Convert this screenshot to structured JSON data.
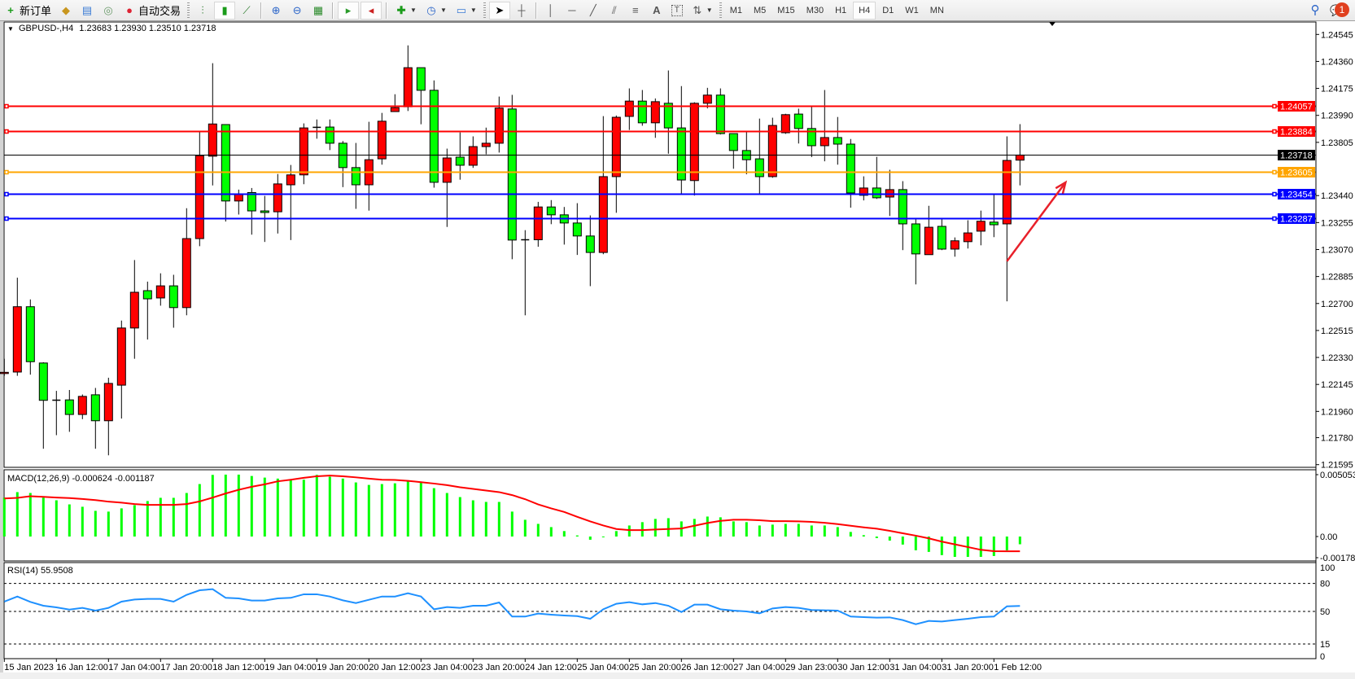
{
  "toolbar": {
    "new_order": "新订单",
    "auto_trade": "自动交易",
    "timeframes": [
      "M1",
      "M5",
      "M15",
      "M30",
      "H1",
      "H4",
      "D1",
      "W1",
      "MN"
    ],
    "active_timeframe": "H4",
    "notification_count": "1"
  },
  "chart": {
    "symbol_label": "GBPUSD-,H4",
    "ohlc_label": "1.23683 1.23930 1.23510 1.23718",
    "macd_label": "MACD(12,26,9) -0.000624 -0.001187",
    "rsi_label": "RSI(14) 55.9508",
    "colors": {
      "bull": "#ff0000",
      "bear": "#00ff00",
      "macd_hist": "#00ff00",
      "macd_signal": "#ff0000",
      "rsi": "#1e90ff",
      "arrow": "#e8202a"
    }
  },
  "chart_data": [
    {
      "type": "candlestick",
      "ylim": [
        1.21577,
        1.24619
      ],
      "y_ticks": [
        "1.24545",
        "1.24360",
        "1.24175",
        "1.23990",
        "1.23805",
        "1.23440",
        "1.23255",
        "1.23070",
        "1.22885",
        "1.22700",
        "1.22515",
        "1.22330",
        "1.22145",
        "1.21960",
        "1.21780",
        "1.21595"
      ],
      "x_tick_labels": [
        "15 Jan 2023",
        "16 Jan 12:00",
        "17 Jan 04:00",
        "17 Jan 20:00",
        "18 Jan 12:00",
        "19 Jan 04:00",
        "19 Jan 20:00",
        "20 Jan 12:00",
        "23 Jan 04:00",
        "23 Jan 20:00",
        "24 Jan 12:00",
        "25 Jan 04:00",
        "25 Jan 20:00",
        "26 Jan 12:00",
        "27 Jan 04:00",
        "29 Jan 23:00",
        "30 Jan 12:00",
        "31 Jan 04:00",
        "31 Jan 20:00",
        "1 Feb 12:00"
      ],
      "ohlc": [
        [
          1.2222,
          1.22321,
          1.22204,
          1.22228
        ],
        [
          1.2223,
          1.22877,
          1.22204,
          1.22678
        ],
        [
          1.22678,
          1.22728,
          1.22212,
          1.22301
        ],
        [
          1.22292,
          1.22297,
          1.21704,
          1.22036
        ],
        [
          1.22037,
          1.22101,
          1.21797,
          1.22037
        ],
        [
          1.22039,
          1.22107,
          1.2182,
          1.21939
        ],
        [
          1.21939,
          1.22076,
          1.21907,
          1.22063
        ],
        [
          1.22074,
          1.22121,
          1.21704,
          1.21896
        ],
        [
          1.21896,
          1.22191,
          1.21659,
          1.22152
        ],
        [
          1.2214,
          1.22583,
          1.21911,
          1.22532
        ],
        [
          1.22532,
          1.22998,
          1.22321,
          1.22777
        ],
        [
          1.22788,
          1.2285,
          1.22453,
          1.22732
        ],
        [
          1.22738,
          1.22907,
          1.22685,
          1.22821
        ],
        [
          1.22821,
          1.22897,
          1.22534,
          1.22672
        ],
        [
          1.22672,
          1.23353,
          1.22619,
          1.23145
        ],
        [
          1.23145,
          1.2388,
          1.23093,
          1.23714
        ],
        [
          1.2371,
          1.24348,
          1.2351,
          1.23931
        ],
        [
          1.23927,
          1.23927,
          1.23262,
          1.23403
        ],
        [
          1.23403,
          1.23481,
          1.2331,
          1.23452
        ],
        [
          1.23461,
          1.23492,
          1.23172,
          1.23335
        ],
        [
          1.23335,
          1.23438,
          1.23122,
          1.23324
        ],
        [
          1.23329,
          1.23588,
          1.2318,
          1.2352
        ],
        [
          1.23514,
          1.2365,
          1.23135,
          1.23582
        ],
        [
          1.23582,
          1.23935,
          1.23518,
          1.23904
        ],
        [
          1.23908,
          1.23962,
          1.2383,
          1.23908
        ],
        [
          1.2391,
          1.23962,
          1.23752,
          1.23799
        ],
        [
          1.23799,
          1.23814,
          1.23498,
          1.23632
        ],
        [
          1.23632,
          1.23801,
          1.23349,
          1.23514
        ],
        [
          1.23514,
          1.23946,
          1.23337,
          1.23686
        ],
        [
          1.23692,
          1.24007,
          1.23652,
          1.2395
        ],
        [
          1.24016,
          1.24135,
          1.24016,
          1.24043
        ],
        [
          1.24049,
          1.2447,
          1.2402,
          1.24317
        ],
        [
          1.24317,
          1.24317,
          1.23929,
          1.24162
        ],
        [
          1.24162,
          1.2423,
          1.23494,
          1.23531
        ],
        [
          1.23531,
          1.23762,
          1.23225,
          1.23698
        ],
        [
          1.23704,
          1.23873,
          1.23549,
          1.23648
        ],
        [
          1.23648,
          1.23846,
          1.2363,
          1.23776
        ],
        [
          1.23776,
          1.23906,
          1.23723,
          1.23799
        ],
        [
          1.23799,
          1.24119,
          1.23735,
          1.2404
        ],
        [
          1.24034,
          1.24131,
          1.23004,
          1.23135
        ],
        [
          1.23137,
          1.23203,
          1.22619,
          1.23137
        ],
        [
          1.23137,
          1.23397,
          1.23089,
          1.23362
        ],
        [
          1.23362,
          1.23409,
          1.23244,
          1.23308
        ],
        [
          1.23308,
          1.23362,
          1.23104,
          1.23252
        ],
        [
          1.23252,
          1.23388,
          1.23033,
          1.23163
        ],
        [
          1.23163,
          1.23304,
          1.22819,
          1.2305
        ],
        [
          1.2305,
          1.23985,
          1.23038,
          1.2357
        ],
        [
          1.2357,
          1.23989,
          1.23322,
          1.23977
        ],
        [
          1.23983,
          1.24175,
          1.2389,
          1.24088
        ],
        [
          1.24088,
          1.24164,
          1.23919,
          1.23939
        ],
        [
          1.23939,
          1.24106,
          1.23836,
          1.24084
        ],
        [
          1.24073,
          1.24298,
          1.23727,
          1.23904
        ],
        [
          1.23904,
          1.24191,
          1.23446,
          1.23547
        ],
        [
          1.23543,
          1.2408,
          1.2344,
          1.24073
        ],
        [
          1.24073,
          1.24179,
          1.24038,
          1.24129
        ],
        [
          1.24129,
          1.24175,
          1.23859,
          1.23865
        ],
        [
          1.23865,
          1.23865,
          1.23624,
          1.23749
        ],
        [
          1.23749,
          1.2388,
          1.23586,
          1.23686
        ],
        [
          1.23692,
          1.23968,
          1.23446,
          1.2357
        ],
        [
          1.2357,
          1.23974,
          1.23562,
          1.23921
        ],
        [
          1.23871,
          1.24001,
          1.23863,
          1.23995
        ],
        [
          1.23999,
          1.24036,
          1.23797,
          1.239
        ],
        [
          1.239,
          1.24053,
          1.23704,
          1.23782
        ],
        [
          1.23782,
          1.24164,
          1.23675,
          1.23838
        ],
        [
          1.23838,
          1.23979,
          1.23652,
          1.23793
        ],
        [
          1.23793,
          1.23828,
          1.23357,
          1.23458
        ],
        [
          1.23442,
          1.23572,
          1.23407,
          1.23492
        ],
        [
          1.23492,
          1.23706,
          1.23417,
          1.23425
        ],
        [
          1.2343,
          1.23617,
          1.233,
          1.23481
        ],
        [
          1.23481,
          1.23539,
          1.23066,
          1.23246
        ],
        [
          1.23246,
          1.23281,
          1.22831,
          1.2304
        ],
        [
          1.23035,
          1.2337,
          1.23035,
          1.23223
        ],
        [
          1.23229,
          1.23281,
          1.23066,
          1.23073
        ],
        [
          1.23073,
          1.23153,
          1.23021,
          1.2313
        ],
        [
          1.23124,
          1.23271,
          1.23077,
          1.23184
        ],
        [
          1.23196,
          1.23337,
          1.23099,
          1.23264
        ],
        [
          1.23258,
          1.23452,
          1.23155,
          1.2324
        ],
        [
          1.23246,
          1.23846,
          1.22715,
          1.23681
        ],
        [
          1.23683,
          1.2393,
          1.2351,
          1.23718
        ]
      ],
      "horizontal_lines": [
        {
          "price": "1.24057",
          "color": "#ff0000",
          "label_text": "#ffffff"
        },
        {
          "price": "1.23884",
          "color": "#ff0000",
          "label_text": "#ffffff"
        },
        {
          "price": "1.23718",
          "color": "#000000",
          "label_text": "#ffffff",
          "bid": true
        },
        {
          "price": "1.23605",
          "color": "#ffa500",
          "label_text": "#ffffff"
        },
        {
          "price": "1.23454",
          "color": "#0000ff",
          "label_text": "#ffffff"
        },
        {
          "price": "1.23287",
          "color": "#0000ff",
          "label_text": "#ffffff"
        }
      ],
      "annotation_arrow": {
        "from": {
          "candle": 77,
          "price": 1.2299
        },
        "to": {
          "candle": 81.5,
          "price": 1.2353
        }
      }
    },
    {
      "type": "bar",
      "name": "MACD(12,26,9)",
      "ylim": [
        -0.00197,
        0.00545
      ],
      "y_ticks": [
        "0.005053",
        "0.00",
        "-0.001784"
      ],
      "histogram": [
        0.00314,
        0.00358,
        0.00351,
        0.00314,
        0.00292,
        0.00259,
        0.0024,
        0.00207,
        0.00201,
        0.00227,
        0.00253,
        0.00286,
        0.00312,
        0.00312,
        0.00351,
        0.00423,
        0.00497,
        0.00499,
        0.00499,
        0.00488,
        0.00475,
        0.00467,
        0.00458,
        0.00458,
        0.00497,
        0.00482,
        0.00467,
        0.00436,
        0.00416,
        0.00423,
        0.00429,
        0.00453,
        0.00438,
        0.0039,
        0.00351,
        0.00318,
        0.00292,
        0.00279,
        0.00279,
        0.00201,
        0.00135,
        0.00102,
        0.00076,
        0.00044,
        9e-05,
        -0.00026,
        -4e-05,
        0.00044,
        0.00089,
        0.00116,
        0.00142,
        0.00148,
        0.00122,
        0.00142,
        0.00161,
        0.00155,
        0.00122,
        0.00116,
        0.00089,
        0.00096,
        0.00102,
        0.00102,
        0.00089,
        0.00089,
        0.00076,
        0.00037,
        0.00011,
        -0.00013,
        -0.00033,
        -0.00065,
        -0.00111,
        -0.00124,
        -0.0015,
        -0.00164,
        -0.00164,
        -0.00164,
        -0.00157,
        -0.00111,
        -0.000624
      ],
      "signal": [
        0.00307,
        0.00312,
        0.00325,
        0.0032,
        0.00314,
        0.0031,
        0.00303,
        0.00294,
        0.00281,
        0.00273,
        0.00262,
        0.00255,
        0.00255,
        0.00255,
        0.00262,
        0.00283,
        0.00314,
        0.00347,
        0.00377,
        0.00401,
        0.00421,
        0.00445,
        0.00458,
        0.00473,
        0.00486,
        0.00491,
        0.00486,
        0.00477,
        0.00467,
        0.00458,
        0.00456,
        0.00449,
        0.00438,
        0.00427,
        0.00414,
        0.00397,
        0.00384,
        0.00371,
        0.00358,
        0.00334,
        0.00301,
        0.00259,
        0.00227,
        0.00198,
        0.00159,
        0.00122,
        0.00089,
        0.00061,
        0.00052,
        0.00052,
        0.00057,
        0.00061,
        0.00065,
        0.00087,
        0.00109,
        0.00126,
        0.00135,
        0.00135,
        0.00131,
        0.00124,
        0.00124,
        0.00122,
        0.00118,
        0.00111,
        0.001,
        0.00087,
        0.00074,
        0.00063,
        0.00046,
        0.00026,
        7e-05,
        -0.00015,
        -0.00041,
        -0.00063,
        -0.00085,
        -0.00107,
        -0.00118,
        -0.00119,
        -0.001187
      ]
    },
    {
      "type": "line",
      "name": "RSI(14)",
      "ylim": [
        0,
        100
      ],
      "y_ticks": [
        "100",
        "80",
        "50",
        "15",
        "0"
      ],
      "levels": [
        80,
        50,
        15
      ],
      "values": [
        60.5,
        66.0,
        60.2,
        56.1,
        54.4,
        52.0,
        53.8,
        50.9,
        53.8,
        60.5,
        62.8,
        63.4,
        63.4,
        60.5,
        67.8,
        72.7,
        73.9,
        64.6,
        64.0,
        61.7,
        61.7,
        64.0,
        64.6,
        68.4,
        68.4,
        66.0,
        61.9,
        59.0,
        62.5,
        66.0,
        66.0,
        69.5,
        66.0,
        52.3,
        54.7,
        53.8,
        56.1,
        56.1,
        59.6,
        44.5,
        44.5,
        47.7,
        46.5,
        45.6,
        45.0,
        42.1,
        52.3,
        58.2,
        59.9,
        57.6,
        59.0,
        56.1,
        49.4,
        57.3,
        57.3,
        52.3,
        50.9,
        50.0,
        48.0,
        53.2,
        54.7,
        53.8,
        51.5,
        51.2,
        50.9,
        44.5,
        43.9,
        43.3,
        43.6,
        40.7,
        36.3,
        39.8,
        39.2,
        40.7,
        42.1,
        43.9,
        44.5,
        55.5,
        55.95
      ]
    }
  ]
}
